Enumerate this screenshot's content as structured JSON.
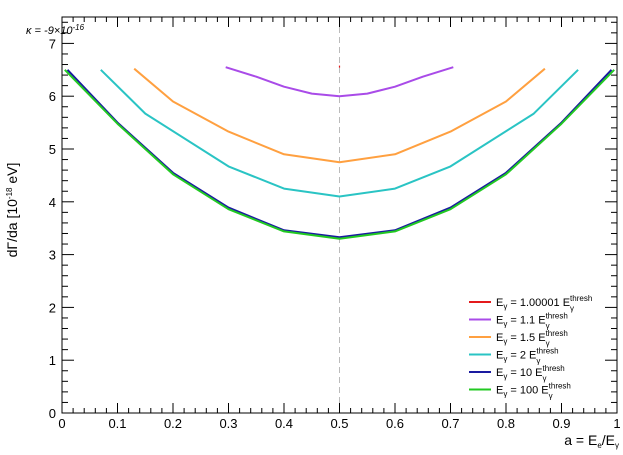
{
  "chart_data": {
    "type": "line",
    "title": "",
    "xlabel": {
      "main": "a = E",
      "sub1": "e",
      "mid": "/E",
      "sub2": "γ"
    },
    "ylabel": {
      "main": "dΓ/da [10",
      "sup": "-18",
      "tail": " eV]"
    },
    "annotation": {
      "main": "κ = -9×10",
      "sup": "-16"
    },
    "xlim": [
      0,
      1
    ],
    "ylim": [
      0,
      7.5
    ],
    "x_major_ticks": [
      0,
      0.1,
      0.2,
      0.3,
      0.4,
      0.5,
      0.6,
      0.7,
      0.8,
      0.9,
      1
    ],
    "x_tick_labels": [
      "0",
      "0.1",
      "0.2",
      "0.3",
      "0.4",
      "0.5",
      "0.6",
      "0.7",
      "0.8",
      "0.9",
      "1"
    ],
    "y_major_ticks": [
      0,
      1,
      2,
      3,
      4,
      5,
      6,
      7
    ],
    "y_tick_labels": [
      "0",
      "1",
      "2",
      "3",
      "4",
      "5",
      "6",
      "7"
    ],
    "reference_line": {
      "x": 0.5,
      "style": "dashed",
      "color": "#bbbbbb"
    },
    "grid": false,
    "legend_position": "bottom-right",
    "series": [
      {
        "legend_prefix": "E",
        "legend_sub": "γ",
        "legend_mid": " = 1.00001 E",
        "legend_sup": "thresh",
        "legend_sub2": "γ",
        "color": "#e41a1c",
        "x": [
          0.499,
          0.501
        ],
        "y": [
          6.56,
          6.56
        ]
      },
      {
        "legend_prefix": "E",
        "legend_sub": "γ",
        "legend_mid": " = 1.1 E",
        "legend_sup": "thresh",
        "legend_sub2": "γ",
        "color": "#a94be8",
        "x": [
          0.295,
          0.35,
          0.4,
          0.45,
          0.5,
          0.55,
          0.6,
          0.65,
          0.705
        ],
        "y": [
          6.55,
          6.37,
          6.18,
          6.05,
          6.0,
          6.05,
          6.18,
          6.37,
          6.55
        ]
      },
      {
        "legend_prefix": "E",
        "legend_sub": "γ",
        "legend_mid": " = 1.5 E",
        "legend_sup": "thresh",
        "legend_sub2": "γ",
        "color": "#ffa040",
        "x": [
          0.13,
          0.2,
          0.3,
          0.4,
          0.5,
          0.6,
          0.7,
          0.8,
          0.87
        ],
        "y": [
          6.52,
          5.9,
          5.33,
          4.9,
          4.75,
          4.9,
          5.33,
          5.9,
          6.52
        ]
      },
      {
        "legend_prefix": "E",
        "legend_sub": "γ",
        "legend_mid": " = 2 E",
        "legend_sup": "thresh",
        "legend_sub2": "γ",
        "color": "#2ac4c4",
        "x": [
          0.07,
          0.15,
          0.3,
          0.4,
          0.5,
          0.6,
          0.7,
          0.85,
          0.93
        ],
        "y": [
          6.5,
          5.67,
          4.67,
          4.25,
          4.1,
          4.25,
          4.67,
          5.67,
          6.5
        ]
      },
      {
        "legend_prefix": "E",
        "legend_sub": "γ",
        "legend_mid": " = 10 E",
        "legend_sup": "thresh",
        "legend_sub2": "γ",
        "color": "#1a1aa0",
        "x": [
          0.01,
          0.1,
          0.2,
          0.3,
          0.4,
          0.5,
          0.6,
          0.7,
          0.8,
          0.9,
          0.99
        ],
        "y": [
          6.5,
          5.5,
          4.55,
          3.89,
          3.46,
          3.33,
          3.46,
          3.89,
          4.55,
          5.5,
          6.5
        ]
      },
      {
        "legend_prefix": "E",
        "legend_sub": "γ",
        "legend_mid": " = 100 E",
        "legend_sup": "thresh",
        "legend_sub2": "γ",
        "color": "#22c922",
        "x": [
          0.005,
          0.1,
          0.2,
          0.3,
          0.4,
          0.5,
          0.6,
          0.7,
          0.8,
          0.9,
          0.995
        ],
        "y": [
          6.5,
          5.48,
          4.52,
          3.86,
          3.44,
          3.3,
          3.44,
          3.86,
          4.52,
          5.48,
          6.5
        ]
      }
    ]
  }
}
